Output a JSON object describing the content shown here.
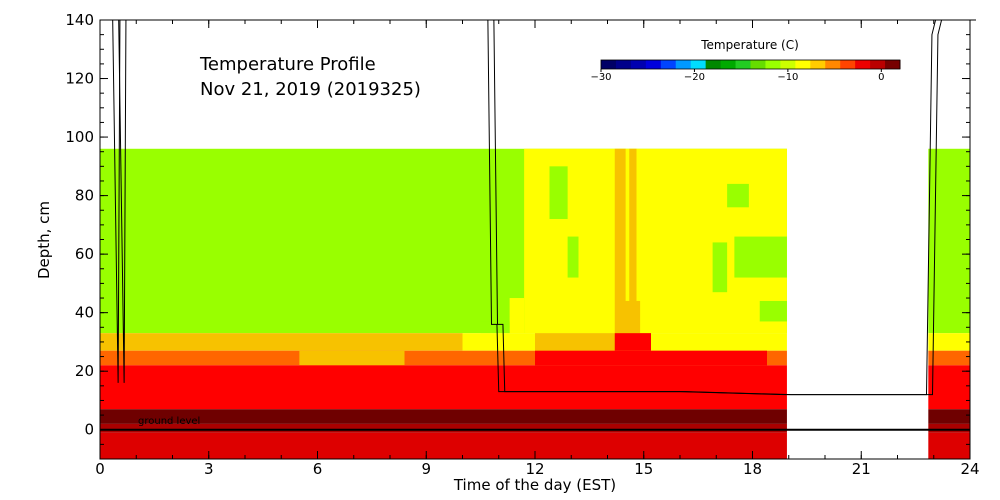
{
  "chart_data": {
    "type": "heatmap",
    "title_lines": [
      "Temperature Profile",
      "Nov 21, 2019 (2019325)"
    ],
    "xlabel": "Time of the day (EST)",
    "ylabel": "Depth, cm",
    "xlim": [
      0,
      24
    ],
    "ylim": [
      -10,
      140
    ],
    "xticks": [
      0,
      3,
      6,
      9,
      12,
      15,
      18,
      21,
      24
    ],
    "yticks": [
      0,
      20,
      40,
      60,
      80,
      100,
      120,
      140
    ],
    "annotation": "ground level",
    "colorbar": {
      "title": "Temperature (C)",
      "range": [
        -30,
        2
      ],
      "ticks": [
        -30,
        -20,
        -10,
        0
      ],
      "colors": [
        "#000066",
        "#00008b",
        "#0000b0",
        "#0000dd",
        "#0044ff",
        "#0099ff",
        "#00ddff",
        "#008800",
        "#00aa00",
        "#22cc22",
        "#66dd00",
        "#99ff00",
        "#ccff00",
        "#ffff00",
        "#ffcc00",
        "#ff8800",
        "#ff4400",
        "#ee0000",
        "#bb0000",
        "#770000"
      ]
    },
    "palette": {
      "c_m8": "#99ff00",
      "c_m2": "#ffff00",
      "c_m1": "#f7c200",
      "c_0": "#ff6600",
      "c_1": "#ff0000",
      "c_2": "#dd0000",
      "c_3": "#aa0000",
      "c_4": "#6f0000"
    },
    "layers": [
      {
        "name": "ground-level line",
        "depth_cm": 0
      },
      {
        "name": "air temperature profile",
        "x": [
          0,
          0.35,
          0.5,
          0.55,
          10.7,
          10.8,
          10.95,
          11.0,
          13,
          16,
          18.9,
          22.8,
          22.95,
          23.05,
          23.5,
          24
        ],
        "y": [
          140,
          140,
          16,
          140,
          140,
          36,
          36,
          13,
          13,
          13,
          12,
          12,
          135,
          140,
          140,
          140
        ]
      }
    ],
    "blocks": [
      {
        "x0": 0,
        "x1": 18.95,
        "y0": 96,
        "y1": 33,
        "c": "c_m8"
      },
      {
        "x0": 11.7,
        "x1": 18.95,
        "y0": 96,
        "y1": 33,
        "c": "c_m2"
      },
      {
        "x0": 12.4,
        "x1": 12.9,
        "y0": 90,
        "y1": 72,
        "c": "c_m8"
      },
      {
        "x0": 12.9,
        "x1": 13.2,
        "y0": 66,
        "y1": 52,
        "c": "c_m8"
      },
      {
        "x0": 16.9,
        "x1": 17.3,
        "y0": 64,
        "y1": 47,
        "c": "c_m8"
      },
      {
        "x0": 17.5,
        "x1": 18.95,
        "y0": 66,
        "y1": 52,
        "c": "c_m8"
      },
      {
        "x0": 18.2,
        "x1": 18.95,
        "y0": 44,
        "y1": 37,
        "c": "c_m8"
      },
      {
        "x0": 17.3,
        "x1": 17.9,
        "y0": 84,
        "y1": 76,
        "c": "c_m8"
      },
      {
        "x0": 11.3,
        "x1": 11.7,
        "y0": 45,
        "y1": 33,
        "c": "c_m2"
      },
      {
        "x0": 14.2,
        "x1": 14.5,
        "y0": 96,
        "y1": 33,
        "c": "c_m1"
      },
      {
        "x0": 14.6,
        "x1": 14.8,
        "y0": 96,
        "y1": 33,
        "c": "c_m1"
      },
      {
        "x0": 14.3,
        "x1": 14.9,
        "y0": 44,
        "y1": 33,
        "c": "c_m1"
      },
      {
        "x0": 10.5,
        "x1": 11.3,
        "y0": 37,
        "y1": 33,
        "c": "c_m8"
      },
      {
        "x0": 10.0,
        "x1": 18.95,
        "y0": 33,
        "y1": 27,
        "c": "c_m2"
      },
      {
        "x0": 0,
        "x1": 10.0,
        "y0": 33,
        "y1": 27,
        "c": "c_m1"
      },
      {
        "x0": 12.0,
        "x1": 15.2,
        "y0": 33,
        "y1": 27,
        "c": "c_m1"
      },
      {
        "x0": 14.2,
        "x1": 15.2,
        "y0": 33,
        "y1": 27,
        "c": "c_1"
      },
      {
        "x0": 0,
        "x1": 18.95,
        "y0": 27,
        "y1": 22,
        "c": "c_0"
      },
      {
        "x0": 5.5,
        "x1": 8.4,
        "y0": 27,
        "y1": 22,
        "c": "c_m1"
      },
      {
        "x0": 12.0,
        "x1": 18.4,
        "y0": 27,
        "y1": 22,
        "c": "c_1"
      },
      {
        "x0": 0,
        "x1": 18.95,
        "y0": 22,
        "y1": 7,
        "c": "c_1"
      },
      {
        "x0": 0,
        "x1": 18.95,
        "y0": 7,
        "y1": 2,
        "c": "c_4"
      },
      {
        "x0": 0,
        "x1": 18.95,
        "y0": 2,
        "y1": -1,
        "c": "c_3"
      },
      {
        "x0": 0,
        "x1": 18.95,
        "y0": -1,
        "y1": -10,
        "c": "c_2"
      },
      {
        "x0": 22.85,
        "x1": 24,
        "y0": 96,
        "y1": 33,
        "c": "c_m8"
      },
      {
        "x0": 22.85,
        "x1": 24,
        "y0": 33,
        "y1": 27,
        "c": "c_m2"
      },
      {
        "x0": 22.85,
        "x1": 24,
        "y0": 27,
        "y1": 22,
        "c": "c_0"
      },
      {
        "x0": 22.85,
        "x1": 24,
        "y0": 22,
        "y1": 7,
        "c": "c_1"
      },
      {
        "x0": 22.85,
        "x1": 24,
        "y0": 7,
        "y1": 2,
        "c": "c_4"
      },
      {
        "x0": 22.85,
        "x1": 24,
        "y0": 2,
        "y1": -1,
        "c": "c_3"
      },
      {
        "x0": 22.85,
        "x1": 24,
        "y0": -1,
        "y1": -10,
        "c": "c_2"
      }
    ]
  }
}
